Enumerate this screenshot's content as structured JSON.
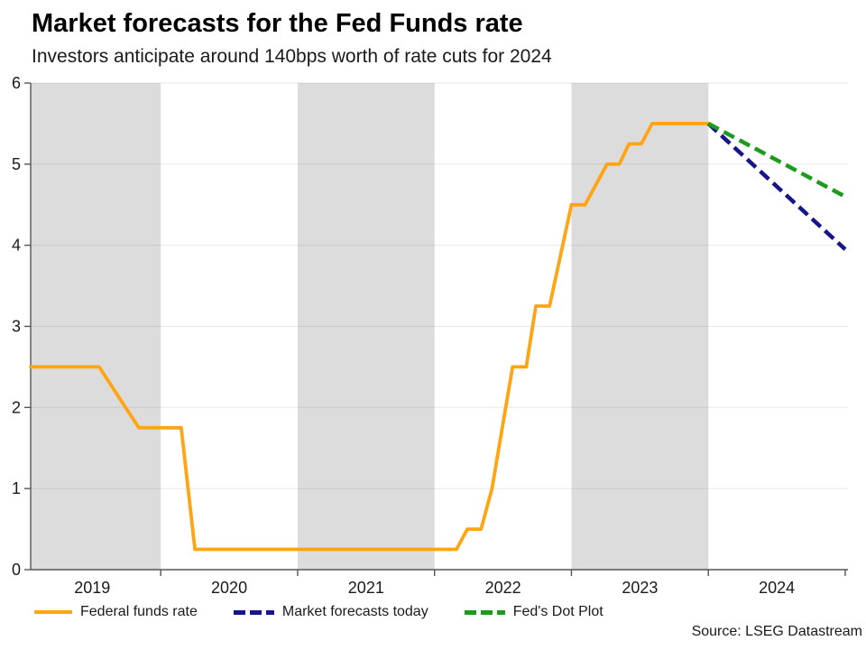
{
  "header": {
    "title": "Market forecasts for the Fed Funds rate",
    "subtitle": "Investors anticipate around 140bps worth of rate cuts for 2024"
  },
  "source": "Source: LSEG Datastream",
  "colors": {
    "federal_funds_rate": "#FFA412",
    "market_forecasts": "#16168A",
    "dot_plot": "#1E9A1E",
    "year_band": "#DCDCDC",
    "gridline": "rgba(0,0,0,0.08)",
    "axis": "#555555",
    "tick_label": "#1a1a1a"
  },
  "chart_data": {
    "type": "line",
    "title": "Market forecasts for the Fed Funds rate",
    "subtitle": "Investors anticipate around 140bps worth of rate cuts for 2024",
    "xlabel": "",
    "ylabel": "",
    "x_domain": [
      2019.05,
      2025.0
    ],
    "y_domain": [
      0,
      6
    ],
    "y_ticks": [
      0,
      1,
      2,
      3,
      4,
      5,
      6
    ],
    "x_boundary_ticks": [
      2020,
      2021,
      2022,
      2023,
      2024,
      2025
    ],
    "x_year_labels": [
      "2019",
      "2020",
      "2021",
      "2022",
      "2023",
      "2024"
    ],
    "shaded_year_bands": [
      [
        2019.05,
        2020.0
      ],
      [
        2021.0,
        2022.0
      ],
      [
        2023.0,
        2024.0
      ]
    ],
    "grid": "horizontal-only",
    "legend_position": "bottom",
    "series": [
      {
        "name": "Federal funds rate",
        "color": "#FFA412",
        "dash": "solid",
        "points": [
          [
            2019.05,
            2.5
          ],
          [
            2019.55,
            2.5
          ],
          [
            2019.84,
            1.75
          ],
          [
            2020.15,
            1.75
          ],
          [
            2020.25,
            0.25
          ],
          [
            2022.16,
            0.25
          ],
          [
            2022.24,
            0.5
          ],
          [
            2022.34,
            0.5
          ],
          [
            2022.42,
            1.0
          ],
          [
            2022.57,
            2.5
          ],
          [
            2022.67,
            2.5
          ],
          [
            2022.74,
            3.25
          ],
          [
            2022.84,
            3.25
          ],
          [
            2023.0,
            4.5
          ],
          [
            2023.1,
            4.5
          ],
          [
            2023.26,
            5.0
          ],
          [
            2023.35,
            5.0
          ],
          [
            2023.42,
            5.25
          ],
          [
            2023.51,
            5.25
          ],
          [
            2023.59,
            5.5
          ],
          [
            2024.0,
            5.5
          ]
        ]
      },
      {
        "name": "Market forecasts today",
        "color": "#16168A",
        "dash": "dashed",
        "points": [
          [
            2024.0,
            5.5
          ],
          [
            2025.0,
            3.95
          ]
        ]
      },
      {
        "name": "Fed's Dot Plot",
        "color": "#1E9A1E",
        "dash": "dashed",
        "points": [
          [
            2024.0,
            5.5
          ],
          [
            2025.0,
            4.6
          ]
        ]
      }
    ]
  }
}
